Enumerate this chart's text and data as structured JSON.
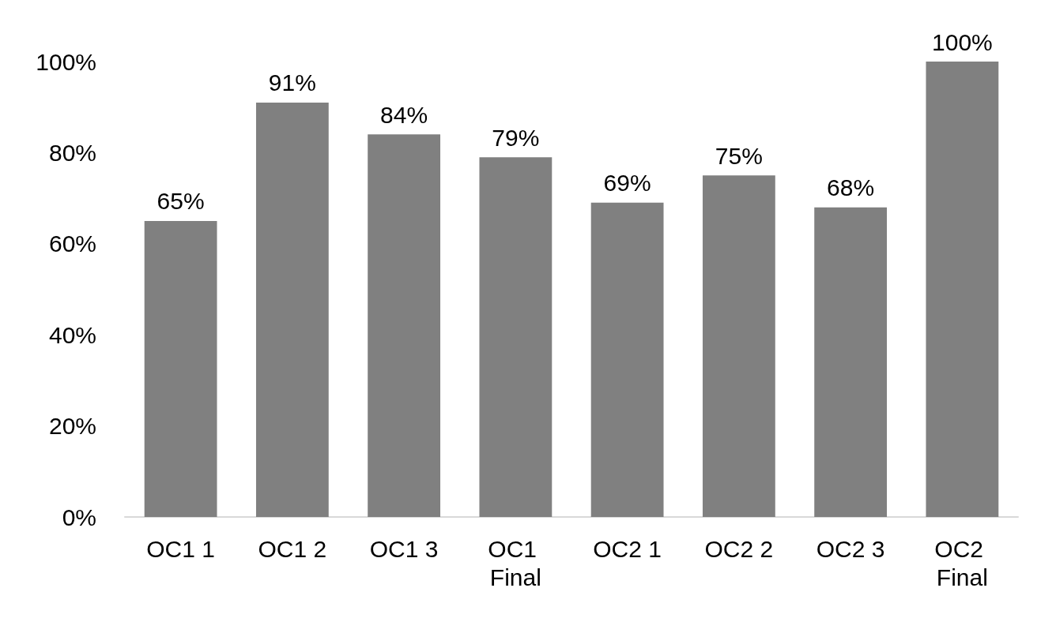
{
  "chart_data": {
    "type": "bar",
    "categories": [
      "OC1 1",
      "OC1 2",
      "OC1 3",
      "OC1 Final",
      "OC2 1",
      "OC2 2",
      "OC2 3",
      "OC2 Final"
    ],
    "values": [
      65,
      91,
      84,
      79,
      69,
      75,
      68,
      100
    ],
    "value_labels": [
      "65%",
      "91%",
      "84%",
      "79%",
      "69%",
      "75%",
      "68%",
      "100%"
    ],
    "color": "#808080",
    "ylim": [
      0,
      100
    ],
    "yticks": [
      {
        "value": 0,
        "label": "0%"
      },
      {
        "value": 20,
        "label": "20%"
      },
      {
        "value": 40,
        "label": "40%"
      },
      {
        "value": 60,
        "label": "60%"
      },
      {
        "value": 80,
        "label": "80%"
      },
      {
        "value": 100,
        "label": "100%"
      }
    ],
    "grid": false
  }
}
